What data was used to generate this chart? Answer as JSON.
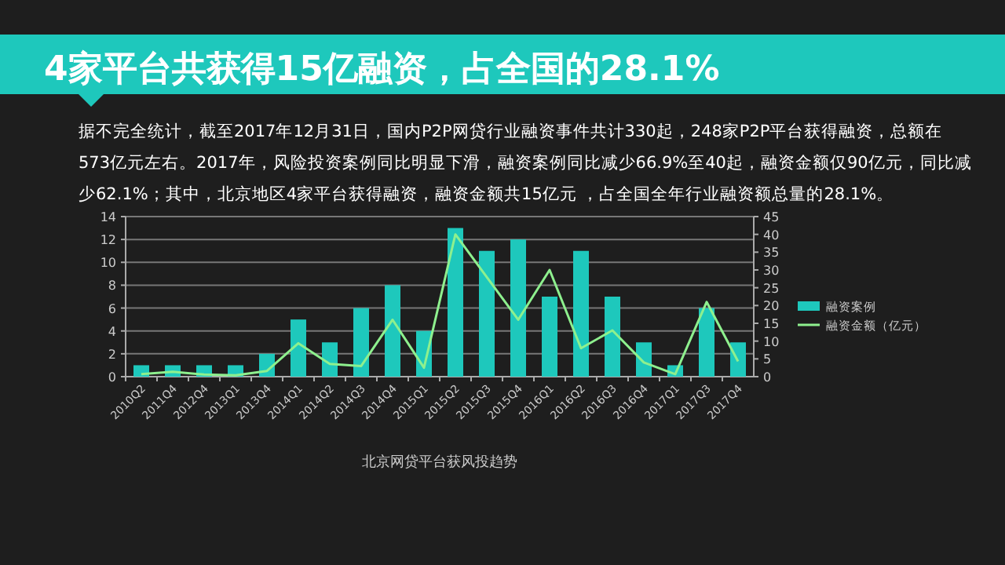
{
  "chart_data": {
    "type": "bar",
    "title": "4家平台共获得15亿融资，占全国的28.1%",
    "subtitle": "据不完全统计，截至2017年12月31日，国内P2P网贷行业融资事件共计330起，248家P2P平台获得融资，总额在573亿元左右。2017年，风险投资案例同比明显下滑，融资案例同比减少66.9%至40起，融资金额仅90亿元，同比减少62.1%；其中，北京地区4家平台获得融资，融资金额共15亿元 ，占全国全年行业融资额总量的28.1%。",
    "annotations": [
      "北京网贷平台获风投趋势"
    ],
    "categories": [
      "2010Q2",
      "2011Q4",
      "2012Q4",
      "2013Q1",
      "2013Q4",
      "2014Q1",
      "2014Q2",
      "2014Q3",
      "2014Q4",
      "2015Q1",
      "2015Q2",
      "2015Q3",
      "2015Q4",
      "2016Q1",
      "2016Q2",
      "2016Q3",
      "2016Q4",
      "2017Q1",
      "2017Q3",
      "2017Q4"
    ],
    "series": [
      {
        "name": "融资案例",
        "color": "#1ec8bc",
        "values": [
          1,
          1,
          1,
          1,
          2,
          5,
          3,
          6,
          8,
          4,
          13,
          11,
          12,
          7,
          11,
          7,
          3,
          1,
          6,
          3
        ]
      },
      {
        "name": "融资金额（亿元）",
        "type": "line",
        "axis": "y2",
        "color": "#8ef08e",
        "values": [
          0.7,
          1.4,
          0.6,
          0.4,
          1.6,
          9.4,
          3.6,
          3,
          16,
          2.5,
          40,
          28,
          16,
          30,
          8,
          13,
          4,
          0.7,
          21,
          4.3
        ]
      }
    ],
    "ylim": [
      0,
      14
    ],
    "yticks": [
      0,
      2,
      4,
      6,
      8,
      10,
      12,
      14
    ],
    "y2lim": [
      0,
      45
    ],
    "y2ticks": [
      0,
      5,
      10,
      15,
      20,
      25,
      30,
      35,
      40,
      45
    ],
    "grid": "y",
    "legend": "right",
    "marker": "none",
    "line_style": "solid"
  }
}
